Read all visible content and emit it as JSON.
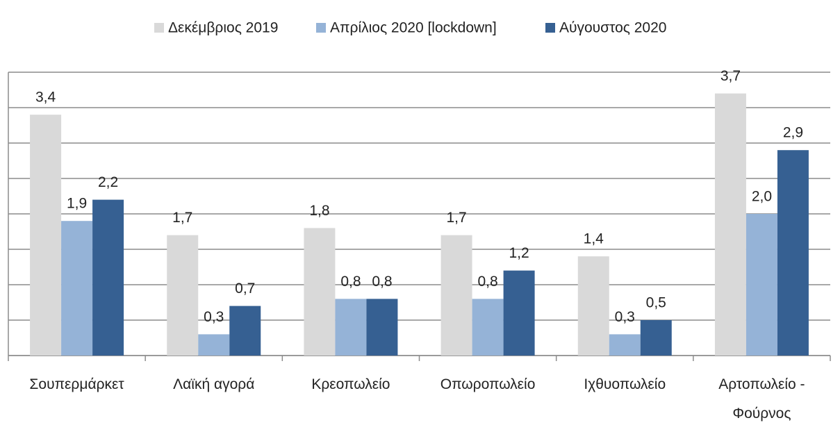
{
  "chart_data": {
    "type": "bar",
    "categories": [
      "Σουπερμάρκετ",
      "Λαϊκή αγορά",
      "Κρεοπωλείο",
      "Οπωροπωλείο",
      "Ιχθυοπωλείο",
      "Αρτοπωλείο - Φούρνος"
    ],
    "series": [
      {
        "name": "Δεκέμβριος 2019",
        "color": "#d9d9d9",
        "values": [
          3.4,
          1.7,
          1.8,
          1.7,
          1.4,
          3.7
        ],
        "value_labels": [
          "3,4",
          "1,7",
          "1,8",
          "1,7",
          "1,4",
          "3,7"
        ]
      },
      {
        "name": "Απρίλιος 2020 [lockdown]",
        "color": "#95b3d7",
        "values": [
          1.9,
          0.3,
          0.8,
          0.8,
          0.3,
          2.0
        ],
        "value_labels": [
          "1,9",
          "0,3",
          "0,8",
          "0,8",
          "0,3",
          "2,0"
        ]
      },
      {
        "name": "Αύγουστος 2020",
        "color": "#366092",
        "values": [
          2.2,
          0.7,
          0.8,
          1.2,
          0.5,
          2.9
        ],
        "value_labels": [
          "2,2",
          "0,7",
          "0,8",
          "1,2",
          "0,5",
          "2,9"
        ]
      }
    ],
    "ylim": [
      0,
      4
    ],
    "yticks": [
      0,
      0.5,
      1,
      1.5,
      2,
      2.5,
      3,
      3.5,
      4
    ],
    "grid": true,
    "legend": "top"
  }
}
